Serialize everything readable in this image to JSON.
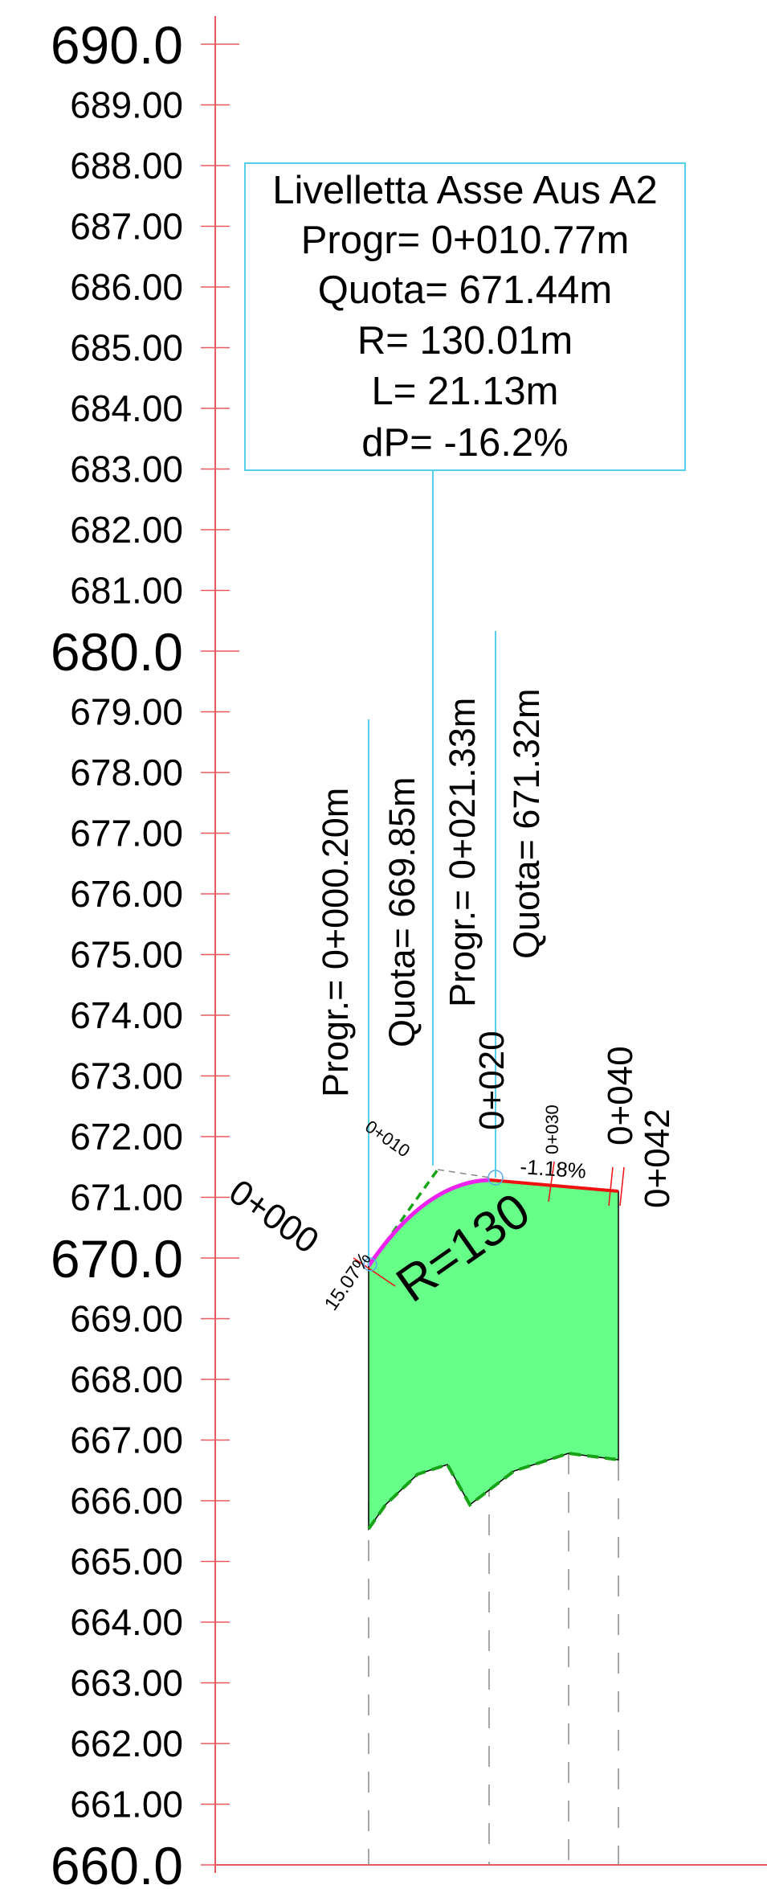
{
  "y_axis_labels": [
    "690.0",
    "689.00",
    "688.00",
    "687.00",
    "686.00",
    "685.00",
    "684.00",
    "683.00",
    "682.00",
    "681.00",
    "680.0",
    "679.00",
    "678.00",
    "677.00",
    "676.00",
    "675.00",
    "674.00",
    "673.00",
    "672.00",
    "671.00",
    "670.0",
    "669.00",
    "668.00",
    "667.00",
    "666.00",
    "665.00",
    "664.00",
    "663.00",
    "662.00",
    "661.00",
    "660.0"
  ],
  "info_box": {
    "title": "Livelletta Asse Aus A2",
    "progr": "Progr= 0+010.77m",
    "quota": "Quota= 671.44m",
    "radius": "R= 130.01m",
    "length": "L= 21.13m",
    "dp": "dP= -16.2%"
  },
  "vertical_labels": {
    "start_progr": "Progr.= 0+000.20m",
    "start_quota": "Quota= 669.85m",
    "end_progr": "Progr.= 0+021.33m",
    "end_quota": "Quota= 671.32m"
  },
  "stations": {
    "s000": "0+000",
    "s010": "0+010",
    "s020": "0+020",
    "s030": "0+030",
    "s040": "0+040",
    "s042": "0+042"
  },
  "grades": {
    "up": "15.07%",
    "down": "-1.18%"
  },
  "curve_label": "R=130",
  "colors": {
    "axis": "#e8595e",
    "fill": "#66ff88",
    "terrain": "#16a316",
    "profile_curve": "#ee22ee",
    "profile_line": "#ee1111",
    "leader": "#55d0ea"
  }
}
